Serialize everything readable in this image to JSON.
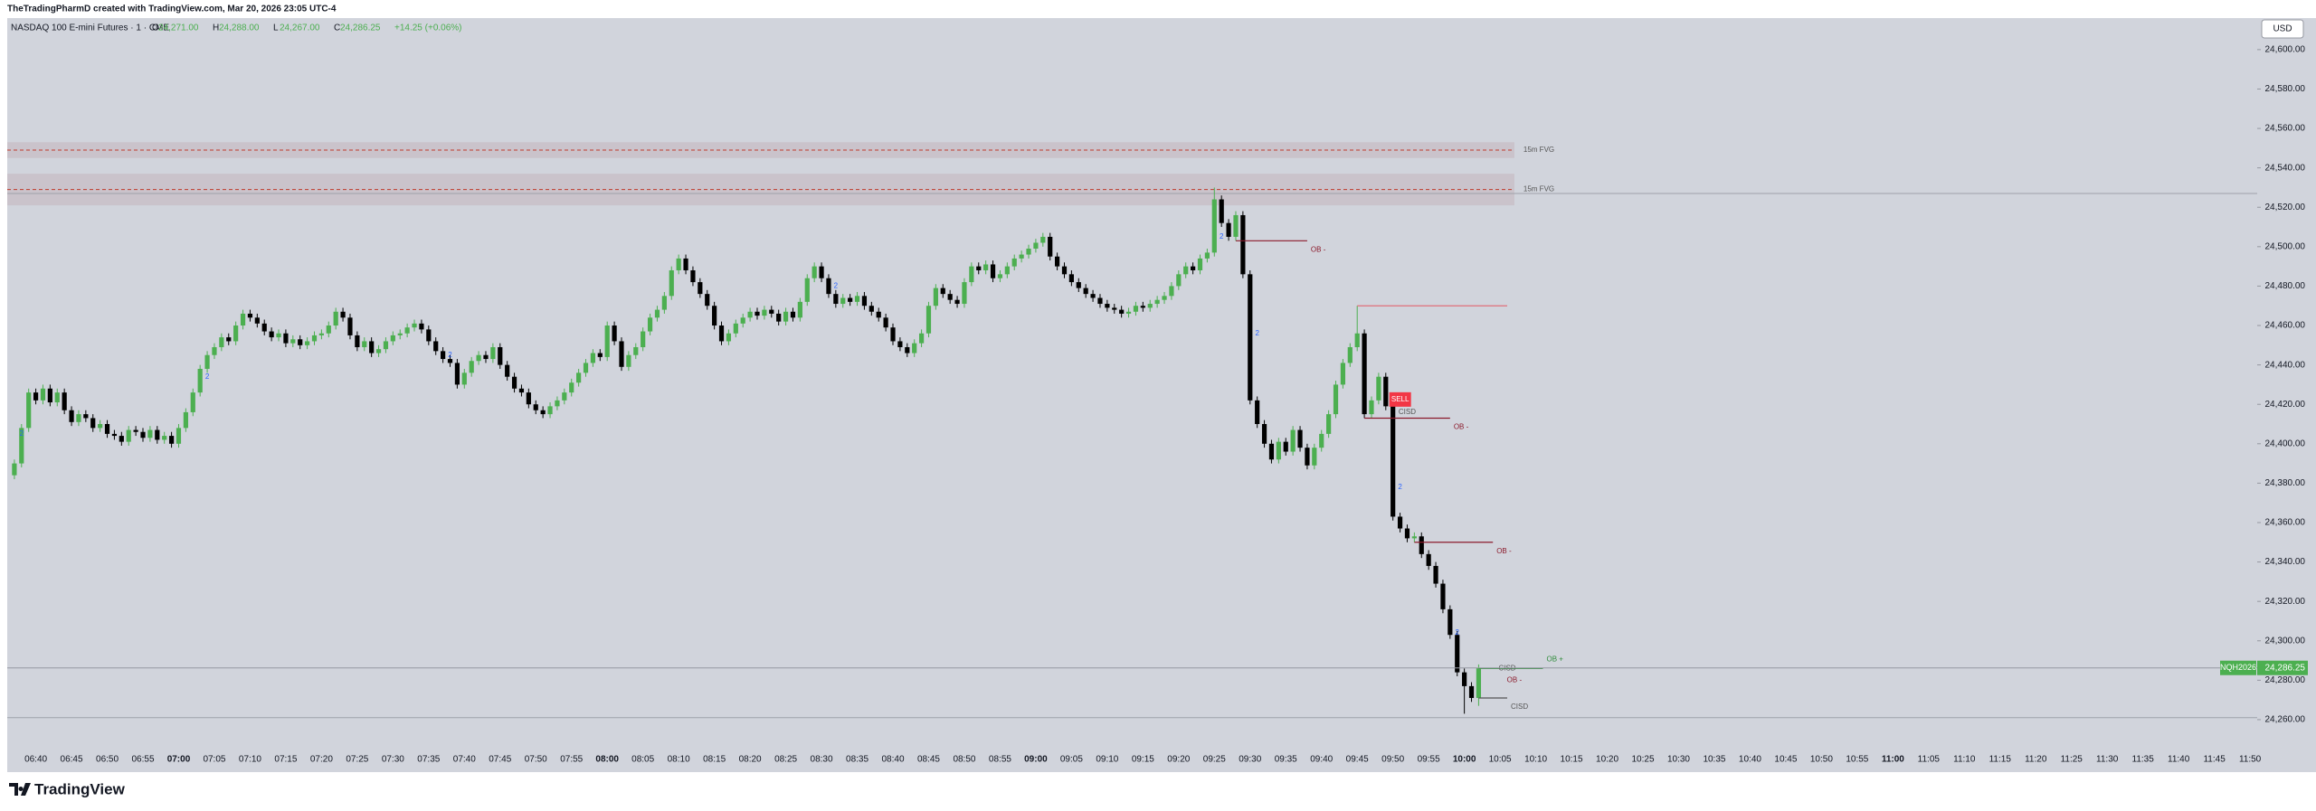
{
  "header": {
    "text": "TheTradingPharmD created with TradingView.com, Mar 20, 2026 23:05 UTC-4"
  },
  "chart_data": {
    "type": "candlestick",
    "title": "NASDAQ 100 E-mini Futures · 1 · CME",
    "ohlc_legend": [
      [
        "O",
        "24,271.00"
      ],
      [
        "H",
        "24,288.00"
      ],
      [
        "L",
        "24,267.00"
      ],
      [
        "C",
        "24,286.25"
      ]
    ],
    "change": "+14.25 (+0.06%)",
    "currency": "USD",
    "up_color": "#4caf50",
    "down_color": "#000000",
    "x": [
      "06:37",
      "06:38",
      "06:39",
      "06:40",
      "06:41",
      "06:42",
      "06:43",
      "06:44",
      "06:45",
      "06:46",
      "06:47",
      "06:48",
      "06:49",
      "06:50",
      "06:51",
      "06:52",
      "06:53",
      "06:54",
      "06:55",
      "06:56",
      "06:57",
      "06:58",
      "06:59",
      "07:00",
      "07:01",
      "07:02",
      "07:03",
      "07:04",
      "07:05",
      "07:06",
      "07:07",
      "07:08",
      "07:09",
      "07:10",
      "07:11",
      "07:12",
      "07:13",
      "07:14",
      "07:15",
      "07:16",
      "07:17",
      "07:18",
      "07:19",
      "07:20",
      "07:21",
      "07:22",
      "07:23",
      "07:24",
      "07:25",
      "07:26",
      "07:27",
      "07:28",
      "07:29",
      "07:30",
      "07:31",
      "07:32",
      "07:33",
      "07:34",
      "07:35",
      "07:36",
      "07:37",
      "07:38",
      "07:39",
      "07:40",
      "07:41",
      "07:42",
      "07:43",
      "07:44",
      "07:45",
      "07:46",
      "07:47",
      "07:48",
      "07:49",
      "07:50",
      "07:51",
      "07:52",
      "07:53",
      "07:54",
      "07:55",
      "07:56",
      "07:57",
      "07:58",
      "07:59",
      "08:00",
      "08:01",
      "08:02",
      "08:03",
      "08:04",
      "08:05",
      "08:06",
      "08:07",
      "08:08",
      "08:09",
      "08:10",
      "08:11",
      "08:12",
      "08:13",
      "08:14",
      "08:15",
      "08:16",
      "08:17",
      "08:18",
      "08:19",
      "08:20",
      "08:21",
      "08:22",
      "08:23",
      "08:24",
      "08:25",
      "08:26",
      "08:27",
      "08:28",
      "08:29",
      "08:30",
      "08:31",
      "08:32",
      "08:33",
      "08:34",
      "08:35",
      "08:36",
      "08:37",
      "08:38",
      "08:39",
      "08:40",
      "08:41",
      "08:42",
      "08:43",
      "08:44",
      "08:45",
      "08:46",
      "08:47",
      "08:48",
      "08:49",
      "08:50",
      "08:51",
      "08:52",
      "08:53",
      "08:54",
      "08:55",
      "08:56",
      "08:57",
      "08:58",
      "08:59",
      "09:00",
      "09:01",
      "09:02",
      "09:03",
      "09:04",
      "09:05",
      "09:06",
      "09:07",
      "09:08",
      "09:09",
      "09:10",
      "09:11",
      "09:12",
      "09:13",
      "09:14",
      "09:15",
      "09:16",
      "09:17",
      "09:18",
      "09:19",
      "09:20",
      "09:21",
      "09:22",
      "09:23",
      "09:24",
      "09:25",
      "09:26",
      "09:27",
      "09:28",
      "09:29",
      "09:30",
      "09:31",
      "09:32",
      "09:33",
      "09:34",
      "09:35",
      "09:36",
      "09:37",
      "09:38",
      "09:39",
      "09:40",
      "09:41",
      "09:42",
      "09:43",
      "09:44",
      "09:45",
      "09:46",
      "09:47",
      "09:48",
      "09:49",
      "09:50",
      "09:51",
      "09:52",
      "09:53",
      "09:54",
      "09:55",
      "09:56",
      "09:57",
      "09:58",
      "09:59",
      "10:00",
      "10:01",
      "10:02"
    ],
    "open": [
      24384,
      24390,
      24408,
      24426,
      24422,
      24428,
      24421,
      24426,
      24417,
      24411,
      24415,
      24413,
      24408,
      24410,
      24405,
      24404,
      24401,
      24407,
      24406,
      24403,
      24407,
      24402,
      24404,
      24400,
      24408,
      24416,
      24426,
      24438,
      24445,
      24449,
      24454,
      24452,
      24460,
      24466,
      24464,
      24461,
      24457,
      24454,
      24456,
      24451,
      24453,
      24450,
      24452,
      24455,
      24456,
      24460,
      24467,
      24464,
      24455,
      24449,
      24452,
      24446,
      24448,
      24452,
      24455,
      24456,
      24459,
      24461,
      24458,
      24452,
      24447,
      24443,
      24441,
      24430,
      24436,
      24442,
      24445,
      24443,
      24449,
      24440,
      24434,
      24428,
      24426,
      24420,
      24417,
      24415,
      24419,
      24422,
      24426,
      24431,
      24436,
      24441,
      24446,
      24444,
      24460,
      24452,
      24439,
      24445,
      24449,
      24457,
      24464,
      24468,
      24475,
      24488,
      24494,
      24488,
      24482,
      24476,
      24470,
      24460,
      24452,
      24456,
      24461,
      24464,
      24467,
      24465,
      24468,
      24466,
      24462,
      24467,
      24464,
      24472,
      24484,
      24490,
      24484,
      24476,
      24471,
      24474,
      24472,
      24475,
      24470,
      24467,
      24464,
      24459,
      24452,
      24449,
      24446,
      24451,
      24456,
      24470,
      24479,
      24476,
      24473,
      24471,
      24482,
      24490,
      24488,
      24491,
      24484,
      24486,
      24490,
      24494,
      24496,
      24499,
      24502,
      24505,
      24495,
      24490,
      24486,
      24482,
      24479,
      24476,
      24474,
      24471,
      24469,
      24468,
      24466,
      24467,
      24470,
      24469,
      24471,
      24473,
      24475,
      24480,
      24486,
      24490,
      24488,
      24494,
      24497,
      24524,
      24512,
      24505,
      24516,
      24486,
      24422,
      24410,
      24400,
      24392,
      24401,
      24396,
      24407,
      24398,
      24389,
      24398,
      24405,
      24415,
      24430,
      24441,
      24449,
      24456,
      24415,
      24422,
      24434,
      24419,
      24363,
      24357,
      24352,
      24353,
      24344,
      24338,
      24329,
      24316,
      24303,
      24284,
      24277,
      24271
    ],
    "high": [
      24392,
      24410,
      24428,
      24428,
      24430,
      24430,
      24428,
      24428,
      24419,
      24417,
      24417,
      24415,
      24412,
      24412,
      24407,
      24406,
      24409,
      24409,
      24408,
      24409,
      24409,
      24406,
      24406,
      24410,
      24418,
      24428,
      24440,
      24447,
      24451,
      24456,
      24456,
      24462,
      24468,
      24468,
      24466,
      24463,
      24459,
      24458,
      24458,
      24455,
      24455,
      24454,
      24457,
      24458,
      24462,
      24469,
      24469,
      24466,
      24457,
      24454,
      24454,
      24450,
      24454,
      24457,
      24458,
      24461,
      24463,
      24463,
      24460,
      24454,
      24449,
      24445,
      24443,
      24438,
      24444,
      24447,
      24447,
      24451,
      24451,
      24442,
      24436,
      24430,
      24428,
      24422,
      24419,
      24421,
      24424,
      24428,
      24433,
      24438,
      24443,
      24448,
      24448,
      24462,
      24462,
      24454,
      24447,
      24451,
      24459,
      24466,
      24470,
      24477,
      24490,
      24496,
      24496,
      24490,
      24484,
      24478,
      24472,
      24462,
      24458,
      24463,
      24466,
      24469,
      24469,
      24470,
      24470,
      24468,
      24469,
      24469,
      24474,
      24486,
      24492,
      24492,
      24486,
      24478,
      24476,
      24476,
      24477,
      24477,
      24472,
      24469,
      24466,
      24461,
      24454,
      24451,
      24453,
      24458,
      24472,
      24481,
      24481,
      24478,
      24475,
      24484,
      24492,
      24492,
      24493,
      24493,
      24488,
      24492,
      24496,
      24498,
      24501,
      24504,
      24507,
      24507,
      24497,
      24492,
      24488,
      24484,
      24481,
      24478,
      24476,
      24473,
      24471,
      24470,
      24469,
      24472,
      24472,
      24473,
      24475,
      24477,
      24482,
      24488,
      24492,
      24492,
      24496,
      24499,
      24530,
      24526,
      24514,
      24518,
      24518,
      24488,
      24424,
      24412,
      24402,
      24403,
      24403,
      24409,
      24409,
      24400,
      24400,
      24407,
      24417,
      24432,
      24443,
      24451,
      24470,
      24458,
      24424,
      24436,
      24436,
      24421,
      24365,
      24359,
      24355,
      24355,
      24346,
      24340,
      24331,
      24318,
      24305,
      24286,
      24279,
      24288
    ],
    "low": [
      24382,
      24388,
      24406,
      24420,
      24420,
      24419,
      24419,
      24415,
      24409,
      24409,
      24411,
      24406,
      24406,
      24403,
      24402,
      24399,
      24399,
      24404,
      24401,
      24401,
      24400,
      24400,
      24398,
      24398,
      24406,
      24414,
      24424,
      24436,
      24443,
      24447,
      24450,
      24450,
      24458,
      24462,
      24459,
      24455,
      24452,
      24452,
      24449,
      24449,
      24448,
      24448,
      24450,
      24453,
      24454,
      24458,
      24462,
      24453,
      24447,
      24447,
      24444,
      24444,
      24446,
      24450,
      24453,
      24454,
      24457,
      24456,
      24450,
      24445,
      24441,
      24439,
      24428,
      24428,
      24434,
      24440,
      24441,
      24441,
      24438,
      24432,
      24426,
      24424,
      24418,
      24415,
      24413,
      24413,
      24417,
      24420,
      24424,
      24429,
      24434,
      24439,
      24442,
      24442,
      24450,
      24437,
      24437,
      24443,
      24447,
      24455,
      24462,
      24466,
      24473,
      24486,
      24486,
      24480,
      24474,
      24468,
      24458,
      24450,
      24450,
      24454,
      24459,
      24462,
      24463,
      24463,
      24464,
      24460,
      24460,
      24462,
      24462,
      24470,
      24482,
      24482,
      24474,
      24469,
      24469,
      24470,
      24470,
      24468,
      24465,
      24462,
      24457,
      24450,
      24447,
      24444,
      24444,
      24449,
      24454,
      24468,
      24474,
      24471,
      24469,
      24469,
      24480,
      24486,
      24486,
      24482,
      24482,
      24484,
      24488,
      24492,
      24494,
      24497,
      24500,
      24493,
      24488,
      24484,
      24480,
      24477,
      24474,
      24472,
      24469,
      24467,
      24466,
      24464,
      24464,
      24465,
      24467,
      24467,
      24469,
      24471,
      24473,
      24478,
      24484,
      24486,
      24486,
      24492,
      24495,
      24510,
      24503,
      24503,
      24484,
      24420,
      24408,
      24398,
      24390,
      24390,
      24394,
      24394,
      24396,
      24387,
      24387,
      24396,
      24403,
      24413,
      24428,
      24439,
      24447,
      24413,
      24413,
      24420,
      24417,
      24361,
      24355,
      24350,
      24350,
      24342,
      24336,
      24327,
      24314,
      24301,
      24282,
      24263,
      24269,
      24267
    ],
    "close": [
      24390,
      24408,
      24426,
      24422,
      24428,
      24421,
      24426,
      24417,
      24411,
      24415,
      24413,
      24408,
      24410,
      24405,
      24404,
      24401,
      24407,
      24406,
      24403,
      24407,
      24402,
      24404,
      24400,
      24408,
      24416,
      24426,
      24438,
      24445,
      24449,
      24454,
      24452,
      24460,
      24466,
      24464,
      24461,
      24457,
      24454,
      24456,
      24451,
      24453,
      24450,
      24452,
      24455,
      24456,
      24460,
      24467,
      24464,
      24455,
      24449,
      24452,
      24446,
      24448,
      24452,
      24455,
      24456,
      24459,
      24461,
      24458,
      24452,
      24447,
      24443,
      24441,
      24430,
      24436,
      24442,
      24445,
      24443,
      24449,
      24440,
      24434,
      24428,
      24426,
      24420,
      24417,
      24415,
      24419,
      24422,
      24426,
      24431,
      24436,
      24441,
      24446,
      24444,
      24460,
      24452,
      24439,
      24445,
      24449,
      24457,
      24464,
      24468,
      24475,
      24488,
      24494,
      24488,
      24482,
      24476,
      24470,
      24460,
      24452,
      24456,
      24461,
      24464,
      24467,
      24465,
      24468,
      24466,
      24462,
      24467,
      24464,
      24472,
      24484,
      24490,
      24484,
      24476,
      24471,
      24474,
      24472,
      24475,
      24470,
      24467,
      24464,
      24459,
      24452,
      24449,
      24446,
      24451,
      24456,
      24470,
      24479,
      24476,
      24473,
      24471,
      24482,
      24490,
      24488,
      24491,
      24484,
      24486,
      24490,
      24494,
      24496,
      24499,
      24502,
      24505,
      24495,
      24490,
      24486,
      24482,
      24479,
      24476,
      24474,
      24471,
      24469,
      24468,
      24466,
      24467,
      24470,
      24469,
      24471,
      24473,
      24475,
      24480,
      24486,
      24490,
      24488,
      24494,
      24497,
      24524,
      24512,
      24505,
      24516,
      24486,
      24422,
      24410,
      24400,
      24392,
      24401,
      24396,
      24407,
      24398,
      24389,
      24398,
      24405,
      24415,
      24430,
      24441,
      24449,
      24456,
      24415,
      24422,
      24434,
      24419,
      24363,
      24357,
      24352,
      24353,
      24344,
      24338,
      24329,
      24316,
      24303,
      24284,
      24277,
      24271,
      24286.25
    ],
    "xlim": [
      "06:36",
      "11:51"
    ],
    "xticks": [
      "06:40",
      "06:45",
      "06:50",
      "06:55",
      "07:00",
      "07:05",
      "07:10",
      "07:15",
      "07:20",
      "07:25",
      "07:30",
      "07:35",
      "07:40",
      "07:45",
      "07:50",
      "07:55",
      "08:00",
      "08:05",
      "08:10",
      "08:15",
      "08:20",
      "08:25",
      "08:30",
      "08:35",
      "08:40",
      "08:45",
      "08:50",
      "08:55",
      "09:00",
      "09:05",
      "09:10",
      "09:15",
      "09:20",
      "09:25",
      "09:30",
      "09:35",
      "09:40",
      "09:45",
      "09:50",
      "09:55",
      "10:00",
      "10:05",
      "10:10",
      "10:15",
      "10:20",
      "10:25",
      "10:30",
      "10:35",
      "10:40",
      "10:45",
      "10:50",
      "10:55",
      "11:00",
      "11:05",
      "11:10",
      "11:15",
      "11:20",
      "11:25",
      "11:30",
      "11:35",
      "11:40",
      "11:45",
      "11:50"
    ],
    "ylim": [
      24243,
      24616
    ],
    "yticks": [
      {
        "value": 24260,
        "label": "24,260.00"
      },
      {
        "value": 24280,
        "label": "24,280.00"
      },
      {
        "value": 24300,
        "label": "24,300.00"
      },
      {
        "value": 24320,
        "label": "24,320.00"
      },
      {
        "value": 24340,
        "label": "24,340.00"
      },
      {
        "value": 24360,
        "label": "24,360.00"
      },
      {
        "value": 24380,
        "label": "24,380.00"
      },
      {
        "value": 24400,
        "label": "24,400.00"
      },
      {
        "value": 24420,
        "label": "24,420.00"
      },
      {
        "value": 24440,
        "label": "24,440.00"
      },
      {
        "value": 24460,
        "label": "24,460.00"
      },
      {
        "value": 24480,
        "label": "24,480.00"
      },
      {
        "value": 24500,
        "label": "24,500.00"
      },
      {
        "value": 24520,
        "label": "24,520.00"
      },
      {
        "value": 24540,
        "label": "24,540.00"
      },
      {
        "value": 24560,
        "label": "24,560.00"
      },
      {
        "value": 24580,
        "label": "24,580.00"
      },
      {
        "value": 24600,
        "label": "24,600.00"
      }
    ],
    "zones": [
      {
        "label": "15m FVG",
        "top": 24553,
        "bottom": 24545,
        "mid": 24549,
        "end": "10:07"
      },
      {
        "label": "15m FVG",
        "top": 24537,
        "bottom": 24521,
        "mid": 24529,
        "end": "10:07"
      }
    ],
    "hlines": [
      {
        "price": 24527,
        "color": "#9ea1aa"
      },
      {
        "price": 24261,
        "color": "#9ea1aa"
      }
    ],
    "levels": [
      {
        "label": "OB -",
        "price": 24503,
        "start": "09:28",
        "end": "09:38",
        "color": "#8b1a2b"
      },
      {
        "price": 24470,
        "start": "09:45",
        "end": "10:06",
        "color": "#e0707a"
      },
      {
        "label": "OB -",
        "price": 24413,
        "start": "09:46",
        "end": "09:58",
        "color": "#8b1a2b"
      },
      {
        "label": "OB -",
        "price": 24350,
        "start": "09:53",
        "end": "10:04",
        "color": "#8b1a2b"
      },
      {
        "label": "OB +",
        "price": 24286,
        "start": "10:02",
        "end": "10:11",
        "color": "#2e8b3a"
      },
      {
        "label": "CISD",
        "price": 24271,
        "start": "10:02",
        "end": "10:06",
        "color": "#555555"
      }
    ],
    "markers": [
      {
        "label": "2",
        "time": "06:38",
        "price": 24405,
        "color": "#2962ff"
      },
      {
        "label": "2",
        "time": "07:04",
        "price": 24434,
        "color": "#2962ff"
      },
      {
        "label": "2",
        "time": "07:38",
        "price": 24445,
        "color": "#2962ff"
      },
      {
        "label": "2",
        "time": "08:32",
        "price": 24480,
        "color": "#2962ff"
      },
      {
        "label": "2",
        "time": "09:26",
        "price": 24505,
        "color": "#2962ff"
      },
      {
        "label": "2",
        "time": "09:31",
        "price": 24456,
        "color": "#2962ff"
      },
      {
        "label": "2",
        "time": "09:51",
        "price": 24378,
        "color": "#2962ff"
      },
      {
        "label": "2",
        "time": "09:59",
        "price": 24304,
        "color": "#2962ff"
      },
      {
        "label": "CISD",
        "time": "09:52",
        "price": 24416,
        "color": "#555555"
      },
      {
        "label": "CISD",
        "time": "10:06",
        "price": 24286,
        "color": "#555555"
      },
      {
        "label": "OB -",
        "time": "10:07",
        "price": 24280,
        "color": "#8b1a2b"
      }
    ],
    "signal": {
      "label": "SELL",
      "time": "09:50",
      "price": 24422,
      "color": "#f23645"
    },
    "last_price": {
      "symbol": "NQH2026",
      "value": 24286.25,
      "label": "24,286.25",
      "color": "#4caf50"
    }
  },
  "footer": {
    "logo": "TradingView"
  }
}
